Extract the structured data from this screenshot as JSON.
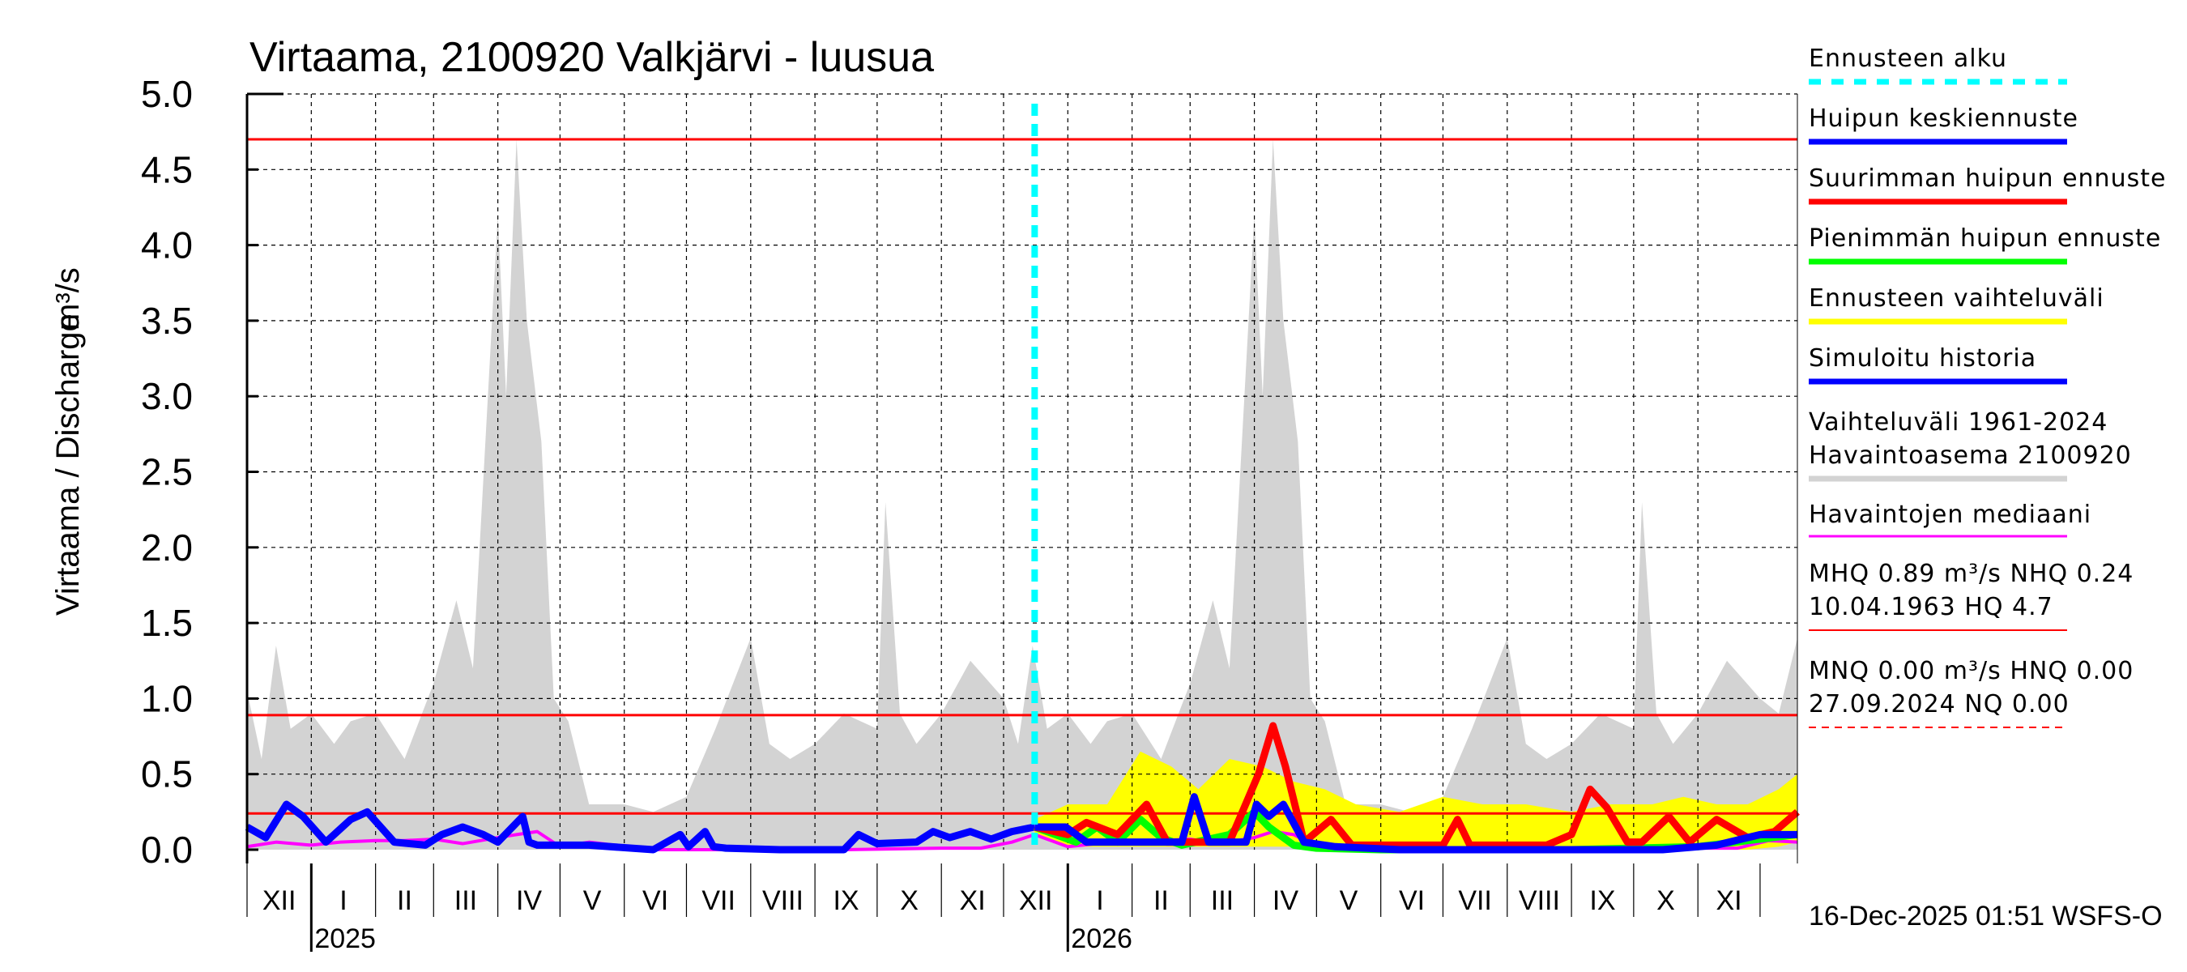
{
  "chart_data": {
    "type": "area",
    "title": "Virtaama, 2100920 Valkjärvi - luusua",
    "ylabel": "Virtaama / Discharge",
    "yunit": "m³/s",
    "ylim": [
      0,
      5.0
    ],
    "y_ticks": [
      "0.0",
      "0.5",
      "1.0",
      "1.5",
      "2.0",
      "2.5",
      "3.0",
      "3.5",
      "4.0",
      "4.5",
      "5.0"
    ],
    "x_range": [
      "2024-12-01",
      "2026-12-19"
    ],
    "x_tick_labels": [
      "XII",
      "I",
      "II",
      "III",
      "IV",
      "V",
      "VI",
      "VII",
      "VIII",
      "IX",
      "X",
      "XI",
      "XII",
      "I",
      "II",
      "III",
      "IV",
      "V",
      "VI",
      "VII",
      "VIII",
      "IX",
      "X",
      "XI"
    ],
    "year_labels": [
      {
        "label": "2025",
        "date": "2025-01-01"
      },
      {
        "label": "2026",
        "date": "2026-01-01"
      }
    ],
    "grid": true,
    "legend_placement": "right",
    "forecast_start": "2025-12-16",
    "reference_lines": [
      {
        "name": "HQ",
        "value": 4.7,
        "color": "#ff0000"
      },
      {
        "name": "MHQ",
        "value": 0.89,
        "color": "#ff0000"
      },
      {
        "name": "NHQ",
        "value": 0.24,
        "color": "#ff0000"
      }
    ],
    "series": [
      {
        "name": "Vaihteluväli 1961-2024 Havaintoasema 2100920",
        "kind": "band",
        "color": "#d3d3d3",
        "x": [
          "2024-12-01",
          "2024-12-08",
          "2024-12-15",
          "2024-12-22",
          "2025-01-01",
          "2025-01-12",
          "2025-01-20",
          "2025-02-01",
          "2025-02-15",
          "2025-03-01",
          "2025-03-12",
          "2025-03-20",
          "2025-04-01",
          "2025-04-05",
          "2025-04-10",
          "2025-04-15",
          "2025-04-22",
          "2025-04-28",
          "2025-05-05",
          "2025-05-15",
          "2025-06-01",
          "2025-06-15",
          "2025-07-01",
          "2025-07-15",
          "2025-08-01",
          "2025-08-10",
          "2025-08-20",
          "2025-09-01",
          "2025-09-15",
          "2025-10-01",
          "2025-10-05",
          "2025-10-12",
          "2025-10-20",
          "2025-11-01",
          "2025-11-15",
          "2025-12-01",
          "2025-12-08",
          "2025-12-15",
          "2025-12-22",
          "2026-01-01",
          "2026-01-12",
          "2026-01-20",
          "2026-02-01",
          "2026-02-15",
          "2026-03-01",
          "2026-03-12",
          "2026-03-20",
          "2026-04-01",
          "2026-04-05",
          "2026-04-10",
          "2026-04-15",
          "2026-04-22",
          "2026-04-28",
          "2026-05-05",
          "2026-05-15",
          "2026-06-01",
          "2026-06-15",
          "2026-07-01",
          "2026-07-15",
          "2026-08-01",
          "2026-08-10",
          "2026-08-20",
          "2026-09-01",
          "2026-09-15",
          "2026-10-01",
          "2026-10-05",
          "2026-10-12",
          "2026-10-20",
          "2026-11-01",
          "2026-11-15",
          "2026-12-01",
          "2026-12-10",
          "2026-12-19"
        ],
        "upper": [
          1.05,
          0.6,
          1.35,
          0.8,
          0.9,
          0.7,
          0.85,
          0.9,
          0.6,
          1.1,
          1.65,
          1.2,
          4.2,
          3.0,
          4.7,
          3.5,
          2.7,
          1.0,
          0.85,
          0.3,
          0.3,
          0.25,
          0.35,
          0.8,
          1.4,
          0.7,
          0.6,
          0.7,
          0.9,
          0.8,
          2.3,
          0.9,
          0.7,
          0.9,
          1.25,
          1.0,
          0.7,
          1.35,
          0.8,
          0.9,
          0.7,
          0.85,
          0.9,
          0.6,
          1.1,
          1.65,
          1.2,
          4.2,
          3.0,
          4.7,
          3.5,
          2.7,
          1.0,
          0.85,
          0.3,
          0.3,
          0.25,
          0.35,
          0.8,
          1.4,
          0.7,
          0.6,
          0.7,
          0.9,
          0.8,
          2.3,
          0.9,
          0.7,
          0.9,
          1.25,
          1.0,
          0.9,
          1.4
        ],
        "lower": [
          0.0,
          0.0,
          0.0,
          0.0,
          0.0,
          0.0,
          0.0,
          0.0,
          0.0,
          0.0,
          0.0,
          0.0,
          0.0,
          0.0,
          0.0,
          0.0,
          0.0,
          0.0,
          0.0,
          0.0,
          0.0,
          0.0,
          0.0,
          0.0,
          0.0,
          0.0,
          0.0,
          0.0,
          0.0,
          0.0,
          0.0,
          0.0,
          0.0,
          0.0,
          0.0,
          0.0,
          0.0,
          0.0,
          0.0,
          0.0,
          0.0,
          0.0,
          0.0,
          0.0,
          0.0,
          0.0,
          0.0,
          0.0,
          0.0,
          0.0,
          0.0,
          0.0,
          0.0,
          0.0,
          0.0,
          0.0,
          0.0,
          0.0,
          0.0,
          0.0,
          0.0,
          0.0,
          0.0,
          0.0,
          0.0,
          0.0,
          0.0,
          0.0,
          0.0,
          0.0,
          0.0,
          0.0,
          0.0
        ]
      },
      {
        "name": "Ennusteen vaihteluväli",
        "kind": "band",
        "color": "#ffff00",
        "x": [
          "2025-12-16",
          "2026-01-01",
          "2026-01-20",
          "2026-02-05",
          "2026-02-20",
          "2026-03-05",
          "2026-03-20",
          "2026-04-05",
          "2026-04-20",
          "2026-05-05",
          "2026-05-20",
          "2026-06-10",
          "2026-07-01",
          "2026-07-20",
          "2026-08-10",
          "2026-09-01",
          "2026-09-20",
          "2026-10-10",
          "2026-10-25",
          "2026-11-10",
          "2026-11-25",
          "2026-12-10",
          "2026-12-19"
        ],
        "upper": [
          0.2,
          0.3,
          0.3,
          0.65,
          0.55,
          0.4,
          0.6,
          0.55,
          0.45,
          0.4,
          0.3,
          0.25,
          0.35,
          0.3,
          0.3,
          0.25,
          0.3,
          0.3,
          0.35,
          0.3,
          0.3,
          0.4,
          0.5
        ],
        "lower": [
          0.1,
          0.02,
          0.02,
          0.02,
          0.02,
          0.02,
          0.02,
          0.02,
          0.02,
          0.02,
          0.0,
          0.0,
          0.0,
          0.0,
          0.0,
          0.0,
          0.0,
          0.0,
          0.0,
          0.0,
          0.0,
          0.02,
          0.05
        ]
      },
      {
        "name": "Havaintojen mediaani",
        "kind": "line",
        "color": "#ff00ff",
        "x": [
          "2024-12-01",
          "2024-12-15",
          "2025-01-01",
          "2025-01-15",
          "2025-02-01",
          "2025-02-15",
          "2025-03-01",
          "2025-03-15",
          "2025-04-01",
          "2025-04-10",
          "2025-04-20",
          "2025-05-01",
          "2025-05-15",
          "2025-06-15",
          "2025-08-01",
          "2025-09-15",
          "2025-11-01",
          "2025-11-20",
          "2025-12-05",
          "2025-12-16",
          "2026-01-01",
          "2026-01-15",
          "2026-02-01",
          "2026-02-15",
          "2026-03-01",
          "2026-03-15",
          "2026-04-01",
          "2026-04-10",
          "2026-04-20",
          "2026-05-01",
          "2026-05-15",
          "2026-06-15",
          "2026-08-01",
          "2026-09-15",
          "2026-11-01",
          "2026-11-20",
          "2026-12-05",
          "2026-12-19"
        ],
        "values": [
          0.02,
          0.05,
          0.03,
          0.05,
          0.06,
          0.06,
          0.07,
          0.04,
          0.08,
          0.1,
          0.12,
          0.02,
          0.05,
          0.0,
          0.0,
          0.0,
          0.01,
          0.01,
          0.05,
          0.1,
          0.02,
          0.04,
          0.06,
          0.06,
          0.07,
          0.04,
          0.08,
          0.12,
          0.1,
          0.02,
          0.03,
          0.0,
          0.0,
          0.0,
          0.01,
          0.01,
          0.06,
          0.05
        ]
      },
      {
        "name": "Simuloitu historia",
        "kind": "line",
        "color": "#0000ff",
        "x": [
          "2024-12-01",
          "2024-12-10",
          "2024-12-20",
          "2024-12-28",
          "2025-01-08",
          "2025-01-20",
          "2025-01-28",
          "2025-02-10",
          "2025-02-25",
          "2025-03-05",
          "2025-03-15",
          "2025-03-25",
          "2025-04-01",
          "2025-04-13",
          "2025-04-16",
          "2025-04-20",
          "2025-05-15",
          "2025-06-15",
          "2025-06-28",
          "2025-07-02",
          "2025-07-10",
          "2025-07-14",
          "2025-07-20",
          "2025-08-15",
          "2025-09-15",
          "2025-09-22",
          "2025-10-01",
          "2025-10-20",
          "2025-10-28",
          "2025-11-05",
          "2025-11-15",
          "2025-11-25",
          "2025-12-05",
          "2025-12-16"
        ],
        "values": [
          0.15,
          0.08,
          0.3,
          0.22,
          0.05,
          0.2,
          0.25,
          0.05,
          0.03,
          0.1,
          0.15,
          0.1,
          0.05,
          0.22,
          0.05,
          0.03,
          0.03,
          0.0,
          0.1,
          0.02,
          0.12,
          0.02,
          0.01,
          0.0,
          0.0,
          0.1,
          0.04,
          0.05,
          0.12,
          0.08,
          0.12,
          0.07,
          0.12,
          0.15
        ]
      },
      {
        "name": "Pienimmän huipun ennuste",
        "kind": "line",
        "color": "#00ff00",
        "x": [
          "2025-12-16",
          "2026-01-05",
          "2026-01-15",
          "2026-01-25",
          "2026-02-05",
          "2026-02-15",
          "2026-02-25",
          "2026-03-20",
          "2026-04-01",
          "2026-04-08",
          "2026-04-20",
          "2026-05-01",
          "2026-06-01",
          "2026-09-01",
          "2026-11-01",
          "2026-12-01",
          "2026-12-19"
        ],
        "values": [
          0.15,
          0.05,
          0.15,
          0.05,
          0.2,
          0.08,
          0.03,
          0.1,
          0.25,
          0.15,
          0.03,
          0.01,
          0.0,
          0.0,
          0.02,
          0.07,
          0.1
        ]
      },
      {
        "name": "Suurimman huipun ennuste",
        "kind": "line",
        "color": "#ff0000",
        "x": [
          "2025-12-16",
          "2026-01-01",
          "2026-01-10",
          "2026-01-25",
          "2026-02-08",
          "2026-02-18",
          "2026-03-20",
          "2026-04-03",
          "2026-04-10",
          "2026-04-16",
          "2026-04-25",
          "2026-05-08",
          "2026-05-18",
          "2026-07-01",
          "2026-07-08",
          "2026-07-14",
          "2026-08-20",
          "2026-09-01",
          "2026-09-10",
          "2026-09-18",
          "2026-09-28",
          "2026-10-05",
          "2026-10-18",
          "2026-10-28",
          "2026-11-10",
          "2026-11-25",
          "2026-12-08",
          "2026-12-19"
        ],
        "values": [
          0.15,
          0.1,
          0.18,
          0.1,
          0.3,
          0.05,
          0.05,
          0.5,
          0.82,
          0.55,
          0.05,
          0.2,
          0.03,
          0.03,
          0.2,
          0.03,
          0.03,
          0.1,
          0.4,
          0.28,
          0.05,
          0.05,
          0.22,
          0.05,
          0.2,
          0.08,
          0.12,
          0.25
        ]
      },
      {
        "name": "Huipun keskiennuste",
        "kind": "line",
        "color": "#0000ff",
        "x": [
          "2025-12-16",
          "2025-12-31",
          "2026-01-10",
          "2026-02-15",
          "2026-02-25",
          "2026-03-03",
          "2026-03-10",
          "2026-03-28",
          "2026-04-02",
          "2026-04-08",
          "2026-04-15",
          "2026-04-25",
          "2026-05-10",
          "2026-06-10",
          "2026-10-15",
          "2026-11-10",
          "2026-12-01",
          "2026-12-19"
        ],
        "values": [
          0.15,
          0.15,
          0.05,
          0.05,
          0.05,
          0.35,
          0.05,
          0.05,
          0.3,
          0.22,
          0.3,
          0.05,
          0.02,
          0.0,
          0.0,
          0.03,
          0.1,
          0.1
        ]
      }
    ]
  },
  "legend": {
    "items": [
      {
        "label": "Ennusteen alku",
        "color": "#00ffff",
        "style": "dashed"
      },
      {
        "label": "Huipun keskiennuste",
        "color": "#0000ff",
        "style": "solid"
      },
      {
        "label": "Suurimman huipun ennuste",
        "color": "#ff0000",
        "style": "solid"
      },
      {
        "label": "Pienimmän huipun ennuste",
        "color": "#00ff00",
        "style": "solid"
      },
      {
        "label": "Ennusteen vaihteluväli",
        "color": "#ffff00",
        "style": "solid"
      },
      {
        "label": "Simuloitu historia",
        "color": "#0000ff",
        "style": "solid"
      }
    ],
    "range_line1": "Vaihteluväli 1961-2024",
    "range_line2": "Havaintoasema 2100920",
    "range_color": "#d3d3d3",
    "median_label": "Havaintojen mediaani",
    "median_color": "#ff00ff",
    "mhq_line1": "MHQ 0.89 m³/s NHQ 0.24",
    "mhq_line2": "10.04.1963 HQ  4.7",
    "mnq_line1": "MNQ 0.00 m³/s HNQ 0.00",
    "mnq_line2": "27.09.2024 NQ 0.00"
  },
  "footer": "16-Dec-2025 01:51 WSFS-O"
}
